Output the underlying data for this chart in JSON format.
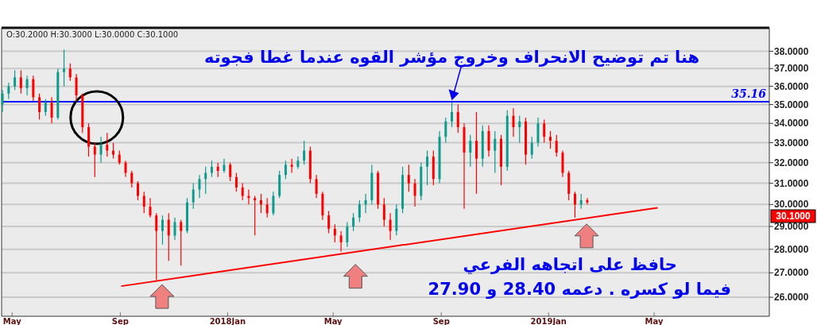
{
  "chart_data": {
    "type": "candlestick",
    "log": true,
    "grid": "y",
    "ylim": [
      25.25,
      39.4
    ],
    "yticks": [
      {
        "value": 26,
        "label": "26.0000"
      },
      {
        "value": 27,
        "label": "27.0000"
      },
      {
        "value": 28,
        "label": "28.0000"
      },
      {
        "value": 29,
        "label": "29.0000"
      },
      {
        "value": 30,
        "label": "30.0000"
      },
      {
        "value": 31,
        "label": "31.0000"
      },
      {
        "value": 32,
        "label": "32.0000"
      },
      {
        "value": 33,
        "label": "33.0000"
      },
      {
        "value": 34,
        "label": "34.0000"
      },
      {
        "value": 35,
        "label": "35.0000"
      },
      {
        "value": 36,
        "label": "36.0000"
      },
      {
        "value": 37,
        "label": "37.0000"
      },
      {
        "value": 38,
        "label": "38.0000"
      }
    ],
    "xlim": [
      "2017-04-19",
      "2019-09-09"
    ],
    "xticks": [
      {
        "value": "2017-05-01",
        "label": "May"
      },
      {
        "value": "2017-09-01",
        "label": "Sep"
      },
      {
        "value": "2018-01-01",
        "label": "2018Jan"
      },
      {
        "value": "2018-05-01",
        "label": "May"
      },
      {
        "value": "2018-09-01",
        "label": "Sep"
      },
      {
        "value": "2019-01-01",
        "label": "2019Jan"
      },
      {
        "value": "2019-05-01",
        "label": "May"
      }
    ],
    "series": [
      {
        "type": "candlestick",
        "x": [
          "2017-04-20",
          "2017-04-27",
          "2017-05-04",
          "2017-05-11",
          "2017-05-18",
          "2017-05-25",
          "2017-06-01",
          "2017-06-08",
          "2017-06-15",
          "2017-06-22",
          "2017-06-29",
          "2017-07-06",
          "2017-07-13",
          "2017-07-20",
          "2017-07-27",
          "2017-08-03",
          "2017-08-10",
          "2017-08-17",
          "2017-08-24",
          "2017-08-31",
          "2017-09-07",
          "2017-09-14",
          "2017-09-21",
          "2017-09-28",
          "2017-10-05",
          "2017-10-12",
          "2017-10-19",
          "2017-10-26",
          "2017-11-02",
          "2017-11-09",
          "2017-11-16",
          "2017-11-23",
          "2017-11-30",
          "2017-12-07",
          "2017-12-14",
          "2017-12-21",
          "2017-12-28",
          "2018-01-04",
          "2018-01-11",
          "2018-01-18",
          "2018-01-25",
          "2018-02-01",
          "2018-02-08",
          "2018-02-15",
          "2018-02-22",
          "2018-03-01",
          "2018-03-08",
          "2018-03-15",
          "2018-03-22",
          "2018-03-29",
          "2018-04-05",
          "2018-04-12",
          "2018-04-19",
          "2018-04-26",
          "2018-05-03",
          "2018-05-10",
          "2018-05-17",
          "2018-05-24",
          "2018-05-31",
          "2018-06-07",
          "2018-06-14",
          "2018-06-21",
          "2018-06-28",
          "2018-07-05",
          "2018-07-12",
          "2018-07-19",
          "2018-07-26",
          "2018-08-02",
          "2018-08-09",
          "2018-08-16",
          "2018-08-23",
          "2018-08-30",
          "2018-09-06",
          "2018-09-13",
          "2018-09-20",
          "2018-09-27",
          "2018-10-04",
          "2018-10-11",
          "2018-10-18",
          "2018-10-25",
          "2018-11-01",
          "2018-11-08",
          "2018-11-15",
          "2018-11-22",
          "2018-11-29",
          "2018-12-06",
          "2018-12-13",
          "2018-12-20",
          "2018-12-27",
          "2019-01-03",
          "2019-01-10",
          "2019-01-17",
          "2019-01-24",
          "2019-01-31",
          "2019-02-07",
          "2019-02-14"
        ],
        "ohlc": [
          [
            35.0,
            35.8,
            34.6,
            35.6
          ],
          [
            35.6,
            36.2,
            35.3,
            36.0
          ],
          [
            36.0,
            36.9,
            35.8,
            36.5
          ],
          [
            36.5,
            36.9,
            35.6,
            35.9
          ],
          [
            35.9,
            36.6,
            35.5,
            36.4
          ],
          [
            36.4,
            36.6,
            35.2,
            35.4
          ],
          [
            35.4,
            35.6,
            34.2,
            34.6
          ],
          [
            34.6,
            35.3,
            34.4,
            35.1
          ],
          [
            35.1,
            35.4,
            34.0,
            34.3
          ],
          [
            34.3,
            37.0,
            34.2,
            36.8
          ],
          [
            36.8,
            38.1,
            36.0,
            37.0
          ],
          [
            37.0,
            37.3,
            36.3,
            36.5
          ],
          [
            36.5,
            36.7,
            35.2,
            35.5
          ],
          [
            35.5,
            35.6,
            33.5,
            33.8
          ],
          [
            33.8,
            34.0,
            32.3,
            32.8
          ],
          [
            32.8,
            33.0,
            31.3,
            32.4
          ],
          [
            32.4,
            33.3,
            32.0,
            32.9
          ],
          [
            32.9,
            33.5,
            32.3,
            32.6
          ],
          [
            32.6,
            33.0,
            32.2,
            32.4
          ],
          [
            32.4,
            32.6,
            31.9,
            32.0
          ],
          [
            32.0,
            32.1,
            31.3,
            31.5
          ],
          [
            31.5,
            31.6,
            30.8,
            31.0
          ],
          [
            31.0,
            31.1,
            30.2,
            30.4
          ],
          [
            30.4,
            30.6,
            29.6,
            29.9
          ],
          [
            29.9,
            30.3,
            29.4,
            29.5
          ],
          [
            29.5,
            29.6,
            26.7,
            28.8
          ],
          [
            28.8,
            29.5,
            28.2,
            29.3
          ],
          [
            29.3,
            29.6,
            27.5,
            28.6
          ],
          [
            28.6,
            29.4,
            28.4,
            29.2
          ],
          [
            29.2,
            29.3,
            27.3,
            28.8
          ],
          [
            28.8,
            30.3,
            28.7,
            30.1
          ],
          [
            30.1,
            31.0,
            29.8,
            30.7
          ],
          [
            30.7,
            31.4,
            30.3,
            31.2
          ],
          [
            31.2,
            31.8,
            30.5,
            31.5
          ],
          [
            31.5,
            32.1,
            31.3,
            31.8
          ],
          [
            31.8,
            32.0,
            31.3,
            31.6
          ],
          [
            31.6,
            32.2,
            31.5,
            31.9
          ],
          [
            31.9,
            32.0,
            31.1,
            31.3
          ],
          [
            31.3,
            31.5,
            30.6,
            30.8
          ],
          [
            30.8,
            31.0,
            30.2,
            30.4
          ],
          [
            30.4,
            30.7,
            30.0,
            30.3
          ],
          [
            30.3,
            30.4,
            28.6,
            30.2
          ],
          [
            30.2,
            30.5,
            29.6,
            30.0
          ],
          [
            30.0,
            30.3,
            29.4,
            29.6
          ],
          [
            29.6,
            30.6,
            29.5,
            30.4
          ],
          [
            30.4,
            31.6,
            30.3,
            31.4
          ],
          [
            31.4,
            32.1,
            31.2,
            31.9
          ],
          [
            31.9,
            32.2,
            31.5,
            31.8
          ],
          [
            31.8,
            32.3,
            31.7,
            32.1
          ],
          [
            32.1,
            33.1,
            31.9,
            32.6
          ],
          [
            32.6,
            32.8,
            31.0,
            31.2
          ],
          [
            31.2,
            31.4,
            30.3,
            30.5
          ],
          [
            30.5,
            30.6,
            29.3,
            29.5
          ],
          [
            29.5,
            29.7,
            28.7,
            28.9
          ],
          [
            28.9,
            29.1,
            28.3,
            28.6
          ],
          [
            28.6,
            28.8,
            27.9,
            28.3
          ],
          [
            28.3,
            29.2,
            28.1,
            29.0
          ],
          [
            29.0,
            29.6,
            28.8,
            29.4
          ],
          [
            29.4,
            30.2,
            29.2,
            30.0
          ],
          [
            30.0,
            30.5,
            29.6,
            30.2
          ],
          [
            30.2,
            31.9,
            30.0,
            31.5
          ],
          [
            31.5,
            31.6,
            29.8,
            30.0
          ],
          [
            30.0,
            30.3,
            29.0,
            29.3
          ],
          [
            29.3,
            29.6,
            28.4,
            28.8
          ],
          [
            28.8,
            30.0,
            28.6,
            29.8
          ],
          [
            29.8,
            31.8,
            29.6,
            31.4
          ],
          [
            31.4,
            31.9,
            30.6,
            31.0
          ],
          [
            31.0,
            31.2,
            29.9,
            30.4
          ],
          [
            30.4,
            32.0,
            30.2,
            31.8
          ],
          [
            31.8,
            32.6,
            30.9,
            32.3
          ],
          [
            32.3,
            32.6,
            30.9,
            31.2
          ],
          [
            31.2,
            33.6,
            31.0,
            33.3
          ],
          [
            33.3,
            34.3,
            33.0,
            34.1
          ],
          [
            34.1,
            35.1,
            33.8,
            34.6
          ],
          [
            34.6,
            35.0,
            33.5,
            33.8
          ],
          [
            33.8,
            34.0,
            29.8,
            32.5
          ],
          [
            32.5,
            33.4,
            31.8,
            33.1
          ],
          [
            33.1,
            34.6,
            30.5,
            32.2
          ],
          [
            32.2,
            33.9,
            31.8,
            33.6
          ],
          [
            33.6,
            33.9,
            32.3,
            32.6
          ],
          [
            32.6,
            33.6,
            31.5,
            33.2
          ],
          [
            33.2,
            33.4,
            30.9,
            31.8
          ],
          [
            31.8,
            34.7,
            31.6,
            34.4
          ],
          [
            34.4,
            34.8,
            33.3,
            33.8
          ],
          [
            33.8,
            34.4,
            33.0,
            34.1
          ],
          [
            34.1,
            34.3,
            31.9,
            32.4
          ],
          [
            32.4,
            33.3,
            32.2,
            33.0
          ],
          [
            33.0,
            34.3,
            32.8,
            34.0
          ],
          [
            34.0,
            34.2,
            33.0,
            33.3
          ],
          [
            33.3,
            33.6,
            32.7,
            33.1
          ],
          [
            33.1,
            33.4,
            32.3,
            32.5
          ],
          [
            32.5,
            32.6,
            31.3,
            31.5
          ],
          [
            31.5,
            31.6,
            30.2,
            30.5
          ],
          [
            30.5,
            30.6,
            29.4,
            30.0
          ],
          [
            30.0,
            30.5,
            29.8,
            30.2
          ],
          [
            30.2,
            30.3,
            30.0,
            30.1
          ]
        ],
        "colors": [
          "#0e9a8c",
          "#0e9a8c",
          "#0e9a8c",
          "#ff0000",
          "#0e9a8c",
          "#ff0000",
          "#ff0000",
          "#0e9a8c",
          "#ff0000",
          "#0e9a8c",
          "#0e9a8c",
          "#ff0000",
          "#ff0000",
          "#ff0000",
          "#ff0000",
          "#ff0000",
          "#0e9a8c",
          "#ff0000",
          "#ff0000",
          "#ff0000",
          "#ff0000",
          "#ff0000",
          "#ff0000",
          "#ff0000",
          "#ff0000",
          "#ff0000",
          "#0e9a8c",
          "#ff0000",
          "#0e9a8c",
          "#ff0000",
          "#0e9a8c",
          "#0e9a8c",
          "#0e9a8c",
          "#0e9a8c",
          "#0e9a8c",
          "#ff0000",
          "#0e9a8c",
          "#ff0000",
          "#ff0000",
          "#ff0000",
          "#ff0000",
          "#ff0000",
          "#ff0000",
          "#ff0000",
          "#0e9a8c",
          "#0e9a8c",
          "#0e9a8c",
          "#ff0000",
          "#0e9a8c",
          "#0e9a8c",
          "#ff0000",
          "#ff0000",
          "#ff0000",
          "#ff0000",
          "#ff0000",
          "#ff0000",
          "#0e9a8c",
          "#0e9a8c",
          "#0e9a8c",
          "#0e9a8c",
          "#0e9a8c",
          "#ff0000",
          "#ff0000",
          "#ff0000",
          "#0e9a8c",
          "#0e9a8c",
          "#ff0000",
          "#ff0000",
          "#0e9a8c",
          "#0e9a8c",
          "#ff0000",
          "#0e9a8c",
          "#0e9a8c",
          "#0e9a8c",
          "#ff0000",
          "#ff0000",
          "#0e9a8c",
          "#ff0000",
          "#0e9a8c",
          "#ff0000",
          "#0e9a8c",
          "#ff0000",
          "#0e9a8c",
          "#ff0000",
          "#0e9a8c",
          "#ff0000",
          "#0e9a8c",
          "#0e9a8c",
          "#ff0000",
          "#ff0000",
          "#ff0000",
          "#ff0000",
          "#ff0000",
          "#ff0000",
          "#0e9a8c",
          "#ff0000"
        ]
      },
      {
        "type": "line",
        "color": "#ff0000",
        "x": [
          "2017-09-02",
          "2019-05-05"
        ],
        "values": [
          26.45,
          29.85
        ]
      }
    ],
    "ref_lines": [
      {
        "axis": "y",
        "value": 35.16,
        "label": "35.16",
        "color": "#0000ff"
      }
    ],
    "annotations": [
      "O:30.2000   H:30.3000   L:30.0000   C:30.1000",
      {
        "text": "هنا تم توضيح الانحراف وخروج مؤشر القوه عندما غطا فجوته",
        "x": "2018-09-13",
        "y": 35.1
      },
      "حافظ على اتجاهه الفرعي",
      "فيما لو كسره . دعمه 28.40 و 27.90",
      "30.1000"
    ]
  }
}
